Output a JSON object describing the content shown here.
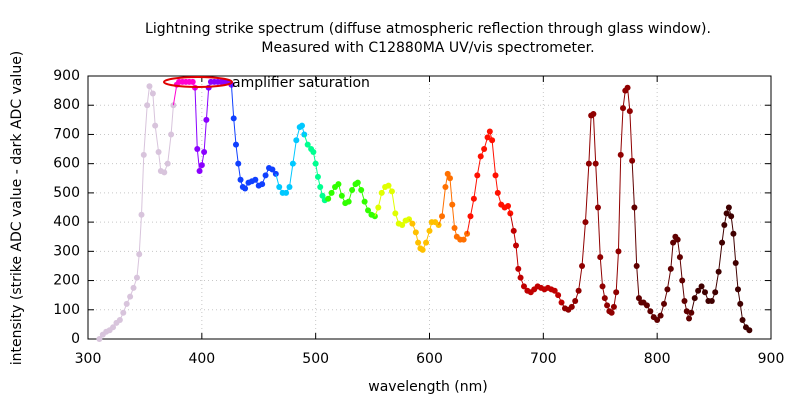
{
  "chart_data": {
    "type": "line",
    "title": [
      "Lightning strike spectrum (diffuse atmospheric reflection through glass window).",
      "Measured with C12880MA UV/vis spectrometer."
    ],
    "x_label": "wavelength (nm)",
    "y_label": "intensity (strike ADC value - dark ADC value)",
    "annotation": "amplifier saturation",
    "xlim": [
      300,
      900
    ],
    "xticks": [
      300,
      400,
      500,
      600,
      700,
      800,
      900
    ],
    "ylim": [
      0,
      900
    ],
    "yticks": [
      0,
      100,
      200,
      300,
      400,
      500,
      600,
      700,
      800,
      900
    ],
    "grid": true,
    "series": [
      {
        "color": "#d8c4dc",
        "x": [
          310,
          313,
          316,
          319,
          322,
          325,
          328,
          331,
          334,
          337,
          340,
          343,
          345,
          347,
          349,
          352,
          354,
          357,
          359,
          362,
          364,
          367,
          370,
          373,
          375
        ],
        "values": [
          0,
          15,
          25,
          30,
          40,
          55,
          65,
          90,
          120,
          145,
          175,
          210,
          290,
          425,
          630,
          800,
          865,
          840,
          730,
          640,
          575,
          570,
          600,
          700,
          800
        ]
      },
      {
        "color": "#ff00d0",
        "x": [
          378,
          380,
          383,
          386,
          389,
          392,
          394
        ],
        "values": [
          870,
          880,
          880,
          880,
          880,
          880,
          860
        ]
      },
      {
        "color": "#8a00ff",
        "x": [
          396,
          398,
          400,
          402,
          404,
          406,
          408,
          411,
          414,
          417,
          420,
          423,
          426
        ],
        "values": [
          650,
          575,
          595,
          640,
          750,
          860,
          880,
          880,
          880,
          880,
          880,
          880,
          870
        ]
      },
      {
        "color": "#1040ff",
        "x": [
          428,
          430,
          432,
          434,
          436,
          438,
          441,
          444,
          447,
          450,
          453,
          456,
          459,
          462,
          465
        ],
        "values": [
          755,
          665,
          600,
          545,
          520,
          515,
          535,
          540,
          545,
          525,
          530,
          560,
          585,
          580,
          565
        ]
      },
      {
        "color": "#00c8ff",
        "x": [
          468,
          471,
          474,
          477,
          480,
          483,
          486,
          488,
          490
        ],
        "values": [
          520,
          500,
          500,
          520,
          600,
          680,
          725,
          730,
          700
        ]
      },
      {
        "color": "#00ff90",
        "x": [
          493,
          496,
          498,
          500,
          502,
          504,
          506,
          508
        ],
        "values": [
          665,
          650,
          640,
          600,
          555,
          520,
          490,
          475
        ]
      },
      {
        "color": "#30ff00",
        "x": [
          511,
          514,
          517,
          520,
          523,
          526,
          529,
          532,
          535,
          537,
          540,
          543,
          546,
          549,
          552
        ],
        "values": [
          480,
          500,
          520,
          530,
          490,
          465,
          470,
          510,
          530,
          535,
          510,
          470,
          440,
          425,
          420
        ]
      },
      {
        "color": "#e0ff00",
        "x": [
          555,
          558,
          561,
          564,
          567,
          570,
          573,
          576,
          579,
          582
        ],
        "values": [
          450,
          500,
          520,
          525,
          505,
          430,
          395,
          390,
          405,
          410
        ]
      },
      {
        "color": "#ffc000",
        "x": [
          585,
          588,
          590,
          592,
          594,
          597,
          600,
          602,
          605,
          608
        ],
        "values": [
          395,
          365,
          330,
          310,
          305,
          330,
          370,
          400,
          400,
          390
        ]
      },
      {
        "color": "#ff7000",
        "x": [
          611,
          614,
          616,
          618,
          620,
          622,
          624,
          627,
          630,
          633
        ],
        "values": [
          420,
          520,
          565,
          550,
          460,
          380,
          350,
          340,
          340,
          360
        ]
      },
      {
        "color": "#ff1000",
        "x": [
          636,
          639,
          642,
          645,
          648,
          651,
          653,
          655,
          658,
          660,
          663,
          666,
          669,
          671
        ],
        "values": [
          420,
          480,
          560,
          625,
          650,
          690,
          710,
          680,
          560,
          500,
          460,
          450,
          455,
          430
        ]
      },
      {
        "color": "#c00000",
        "x": [
          674,
          676,
          678,
          680,
          683,
          686,
          689,
          692,
          695,
          698,
          701,
          704,
          707,
          710,
          713,
          716
        ],
        "values": [
          370,
          320,
          240,
          210,
          180,
          165,
          160,
          170,
          180,
          175,
          170,
          175,
          170,
          165,
          150,
          125
        ]
      },
      {
        "color": "#900000",
        "x": [
          719,
          722,
          725,
          728,
          731,
          734,
          737,
          740,
          742,
          744,
          746,
          748,
          750,
          752,
          754,
          756,
          758,
          760,
          762,
          764,
          766,
          768,
          770,
          772,
          774,
          776,
          778
        ],
        "values": [
          105,
          100,
          110,
          130,
          165,
          250,
          400,
          600,
          765,
          770,
          600,
          450,
          280,
          180,
          140,
          115,
          95,
          90,
          110,
          160,
          300,
          630,
          790,
          850,
          860,
          780,
          610
        ]
      },
      {
        "color": "#600000",
        "x": [
          780,
          782,
          784,
          786,
          788,
          791,
          794,
          797,
          800,
          803,
          806,
          809,
          812,
          814,
          816,
          818,
          820,
          822,
          824,
          826,
          828,
          830
        ],
        "values": [
          450,
          250,
          140,
          125,
          125,
          115,
          95,
          75,
          65,
          80,
          120,
          170,
          240,
          330,
          350,
          340,
          280,
          200,
          130,
          95,
          70,
          90
        ]
      },
      {
        "color": "#400000",
        "x": [
          833,
          836,
          839,
          842,
          845,
          848,
          851,
          854,
          857,
          859,
          861,
          863,
          865,
          867,
          869,
          871,
          873,
          875,
          878,
          881
        ],
        "values": [
          140,
          165,
          180,
          160,
          130,
          130,
          160,
          230,
          330,
          390,
          430,
          450,
          420,
          360,
          260,
          170,
          120,
          65,
          40,
          30
        ]
      }
    ]
  }
}
